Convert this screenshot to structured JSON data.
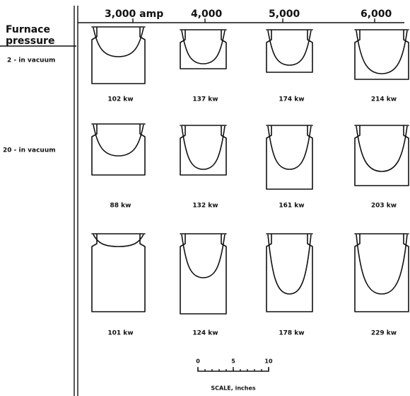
{
  "column_headers": [
    "3,000 amp",
    "4,000",
    "5,000",
    "6,000"
  ],
  "row_header_lines": [
    "Furnace",
    "pressure"
  ],
  "rows": [
    {
      "label": "2 - in vacuum",
      "cells": [
        "102 kw",
        "137 kw",
        "174 kw",
        "214 kw"
      ]
    },
    {
      "label": "20 - in vacuum",
      "cells": [
        "88 kw",
        "132 kw",
        "161 kw",
        "203 kw"
      ]
    },
    {
      "cells": [
        "101 kw",
        "124 kw",
        "178 kw",
        "229 kw"
      ]
    }
  ],
  "scale": {
    "ticks": [
      0,
      5,
      10
    ],
    "label": "SCALE, inches"
  }
}
